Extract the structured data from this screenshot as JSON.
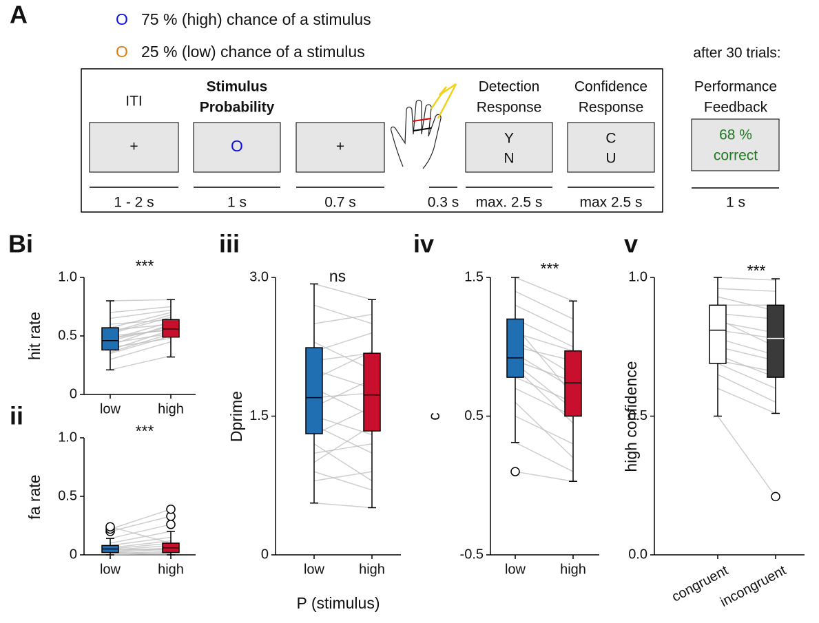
{
  "task": {
    "panel_label": "A",
    "legend": [
      {
        "symbol": "O",
        "color": "#1010e0",
        "text": "75 % (high) chance of a stimulus"
      },
      {
        "symbol": "O",
        "color": "#e07b10",
        "text": "25 % (low) chance of a stimulus"
      }
    ],
    "steps": [
      {
        "header": [
          "ITI"
        ],
        "screen": [
          "+"
        ],
        "duration": "1 - 2 s"
      },
      {
        "header": [
          "Stimulus",
          "Probability"
        ],
        "screen": [
          "O"
        ],
        "duration": "1 s"
      },
      {
        "header": [],
        "screen": [
          "+"
        ],
        "duration": "0.7 s"
      },
      {
        "header": [],
        "screen": [],
        "duration": "0.3 s"
      },
      {
        "header": [
          "Detection",
          "Response"
        ],
        "screen": [
          "Y",
          "N"
        ],
        "duration": "max. 2.5 s"
      },
      {
        "header": [
          "Confidence",
          "Response"
        ],
        "screen": [
          "C",
          "U"
        ],
        "duration": "max 2.5 s"
      }
    ],
    "feedback": {
      "note": "after 30 trials:",
      "header": [
        "Performance",
        "Feedback"
      ],
      "screen": [
        "68 %",
        "correct"
      ],
      "duration": "1 s"
    }
  },
  "chart_data": [
    {
      "type": "box",
      "panel_label": "Bi",
      "title": "***",
      "y_label": "hit rate",
      "categories": [
        "low",
        "high"
      ],
      "ylim": [
        0,
        1
      ],
      "yticks": [
        0,
        0.5,
        {
          "value": 1,
          "label": "1.0"
        }
      ],
      "colors": [
        "#1f6fb2",
        "#c8102e"
      ],
      "median_colors": [
        "#000000",
        "#000000"
      ],
      "boxes": [
        {
          "median": 0.46,
          "q1": 0.38,
          "q3": 0.57,
          "whisker_low": 0.21,
          "whisker_high": 0.8,
          "outliers": []
        },
        {
          "median": 0.56,
          "q1": 0.49,
          "q3": 0.64,
          "whisker_low": 0.32,
          "whisker_high": 0.81,
          "outliers": []
        }
      ],
      "subjects": [
        [
          0.21,
          0.33
        ],
        [
          0.3,
          0.45
        ],
        [
          0.35,
          0.5
        ],
        [
          0.38,
          0.55
        ],
        [
          0.4,
          0.48
        ],
        [
          0.42,
          0.6
        ],
        [
          0.44,
          0.52
        ],
        [
          0.46,
          0.58
        ],
        [
          0.47,
          0.62
        ],
        [
          0.5,
          0.55
        ],
        [
          0.52,
          0.66
        ],
        [
          0.55,
          0.6
        ],
        [
          0.57,
          0.7
        ],
        [
          0.6,
          0.64
        ],
        [
          0.65,
          0.72
        ],
        [
          0.7,
          0.75
        ],
        [
          0.8,
          0.81
        ],
        [
          0.36,
          0.52
        ],
        [
          0.48,
          0.56
        ],
        [
          0.53,
          0.68
        ]
      ]
    },
    {
      "type": "box",
      "panel_label": "ii",
      "title": "***",
      "y_label": "fa rate",
      "categories": [
        "low",
        "high"
      ],
      "ylim": [
        0,
        1
      ],
      "yticks": [
        0,
        0.5,
        {
          "value": 1,
          "label": "1.0"
        }
      ],
      "colors": [
        "#1f6fb2",
        "#c8102e"
      ],
      "median_colors": [
        "#000000",
        "#000000"
      ],
      "boxes": [
        {
          "median": 0.05,
          "q1": 0.02,
          "q3": 0.08,
          "whisker_low": 0,
          "whisker_high": 0.14,
          "outliers": [
            0.2,
            0.22,
            0.24
          ]
        },
        {
          "median": 0.06,
          "q1": 0.02,
          "q3": 0.1,
          "whisker_low": 0,
          "whisker_high": 0.2,
          "outliers": [
            0.26,
            0.33,
            0.39
          ]
        }
      ],
      "subjects": [
        [
          0,
          0
        ],
        [
          0,
          0.02
        ],
        [
          0.01,
          0.03
        ],
        [
          0.02,
          0.05
        ],
        [
          0.03,
          0.06
        ],
        [
          0.04,
          0.08
        ],
        [
          0.05,
          0.1
        ],
        [
          0.06,
          0.12
        ],
        [
          0.08,
          0.15
        ],
        [
          0.1,
          0.2
        ],
        [
          0.14,
          0.26
        ],
        [
          0.2,
          0.33
        ],
        [
          0.22,
          0.39
        ],
        [
          0.24,
          0.1
        ],
        [
          0.02,
          0.01
        ],
        [
          0.05,
          0.04
        ]
      ]
    },
    {
      "type": "box",
      "panel_label": "iii",
      "title": "ns",
      "y_label": "Dprime",
      "x_label": "P (stimulus)",
      "categories": [
        "low",
        "high"
      ],
      "ylim": [
        0,
        3
      ],
      "yticks": [
        0,
        1.5,
        {
          "value": 3,
          "label": "3.0"
        }
      ],
      "colors": [
        "#1f6fb2",
        "#c8102e"
      ],
      "median_colors": [
        "#000000",
        "#000000"
      ],
      "boxes": [
        {
          "median": 1.7,
          "q1": 1.31,
          "q3": 2.24,
          "whisker_low": 0.56,
          "whisker_high": 2.93,
          "outliers": []
        },
        {
          "median": 1.73,
          "q1": 1.34,
          "q3": 2.18,
          "whisker_low": 0.51,
          "whisker_high": 2.76,
          "outliers": []
        }
      ],
      "subjects": [
        [
          0.56,
          0.51
        ],
        [
          0.8,
          0.9
        ],
        [
          1.0,
          1.4
        ],
        [
          1.2,
          0.8
        ],
        [
          1.3,
          1.6
        ],
        [
          1.5,
          1.3
        ],
        [
          1.6,
          1.9
        ],
        [
          1.7,
          1.75
        ],
        [
          1.8,
          1.5
        ],
        [
          1.9,
          2.2
        ],
        [
          2.0,
          1.8
        ],
        [
          2.2,
          2.4
        ],
        [
          2.3,
          2.0
        ],
        [
          2.5,
          2.6
        ],
        [
          2.7,
          2.5
        ],
        [
          2.93,
          2.76
        ],
        [
          1.1,
          1.2
        ],
        [
          1.4,
          1.1
        ],
        [
          2.1,
          2.18
        ],
        [
          0.9,
          0.7
        ]
      ]
    },
    {
      "type": "box",
      "panel_label": "iv",
      "title": "***",
      "y_label": "c",
      "categories": [
        "low",
        "high"
      ],
      "ylim": [
        -0.5,
        1.5
      ],
      "yticks": [
        -0.5,
        0.5,
        1.5
      ],
      "colors": [
        "#1f6fb2",
        "#c8102e"
      ],
      "median_colors": [
        "#000000",
        "#000000"
      ],
      "boxes": [
        {
          "median": 0.92,
          "q1": 0.78,
          "q3": 1.2,
          "whisker_low": 0.31,
          "whisker_high": 1.5,
          "outliers": [
            0.1
          ]
        },
        {
          "median": 0.74,
          "q1": 0.5,
          "q3": 0.97,
          "whisker_low": 0.03,
          "whisker_high": 1.33,
          "outliers": []
        }
      ],
      "subjects": [
        [
          0.1,
          0.03
        ],
        [
          0.31,
          0.1
        ],
        [
          0.5,
          0.3
        ],
        [
          0.7,
          0.5
        ],
        [
          0.78,
          0.6
        ],
        [
          0.85,
          0.45
        ],
        [
          0.9,
          0.75
        ],
        [
          0.95,
          0.7
        ],
        [
          1.0,
          0.9
        ],
        [
          1.05,
          0.8
        ],
        [
          1.1,
          0.97
        ],
        [
          1.2,
          1.0
        ],
        [
          1.3,
          1.1
        ],
        [
          1.4,
          1.2
        ],
        [
          1.5,
          1.33
        ],
        [
          0.6,
          0.2
        ],
        [
          0.88,
          0.55
        ],
        [
          1.15,
          0.65
        ]
      ]
    },
    {
      "type": "box",
      "panel_label": "v",
      "title": "***",
      "y_label": "high confidence",
      "categories": [
        "congruent",
        "incongruent"
      ],
      "ylim": [
        0,
        1
      ],
      "yticks": [
        {
          "value": 0,
          "label": "0.0"
        },
        0.5,
        {
          "value": 1,
          "label": "1.0"
        }
      ],
      "colors": [
        "#ffffff",
        "#3a3a3a"
      ],
      "median_colors": [
        "#000000",
        "#ffffff"
      ],
      "boxes": [
        {
          "median": 0.81,
          "q1": 0.69,
          "q3": 0.9,
          "whisker_low": 0.5,
          "whisker_high": 1.0,
          "outliers": []
        },
        {
          "median": 0.78,
          "q1": 0.64,
          "q3": 0.9,
          "whisker_low": 0.51,
          "whisker_high": 0.995,
          "outliers": [
            0.21
          ]
        }
      ],
      "subjects": [
        [
          0.5,
          0.21
        ],
        [
          0.6,
          0.51
        ],
        [
          0.65,
          0.55
        ],
        [
          0.69,
          0.6
        ],
        [
          0.72,
          0.64
        ],
        [
          0.75,
          0.7
        ],
        [
          0.78,
          0.72
        ],
        [
          0.81,
          0.78
        ],
        [
          0.84,
          0.8
        ],
        [
          0.87,
          0.85
        ],
        [
          0.9,
          0.9
        ],
        [
          0.93,
          0.88
        ],
        [
          0.96,
          0.95
        ],
        [
          1.0,
          0.99
        ],
        [
          0.7,
          0.66
        ],
        [
          0.85,
          0.75
        ]
      ]
    }
  ]
}
